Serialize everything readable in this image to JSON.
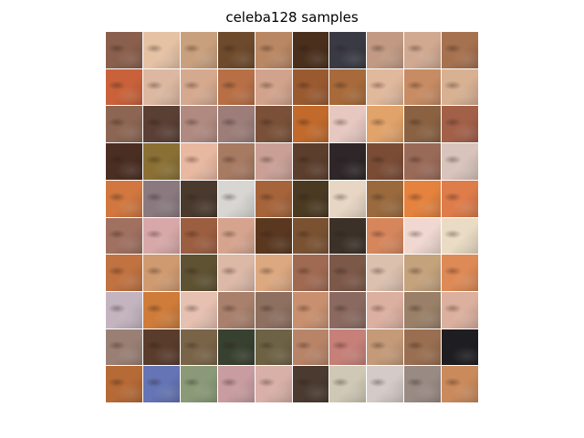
{
  "title": "celeba128 samples",
  "grid": {
    "rows": 10,
    "cols": 10,
    "tiles": [
      [
        "#8a5f4c",
        "#e6c2a4",
        "#c9a07e",
        "#6e4a2c",
        "#b98763",
        "#4a2f1c",
        "#3a3a44",
        "#c29a83",
        "#d1a991",
        "#a6714f"
      ],
      [
        "#c9623a",
        "#dcb8a0",
        "#d5a98e",
        "#b86f45",
        "#d2a38c",
        "#9a5a30",
        "#a86a3a",
        "#e0b89c",
        "#c78c63",
        "#d8b092"
      ],
      [
        "#8c6652",
        "#5a3f35",
        "#b08a80",
        "#9c7d78",
        "#7a5138",
        "#c26a2c",
        "#e6c8c0",
        "#e2a36a",
        "#8a6242",
        "#a36048"
      ],
      [
        "#4a2e22",
        "#8a7034",
        "#e8b8a0",
        "#a77a62",
        "#caa096",
        "#5c3e2c",
        "#2e2628",
        "#7a4c36",
        "#9a6a58",
        "#d8c4bc"
      ],
      [
        "#d1773f",
        "#8a7a80",
        "#4a3a2e",
        "#d8d6d2",
        "#a6643a",
        "#4a3a22",
        "#e8d6c4",
        "#9a6a3e",
        "#e4823e",
        "#de7c4a"
      ],
      [
        "#a07060",
        "#d8a8a8",
        "#9c5e40",
        "#d6a48e",
        "#5a3820",
        "#7a5232",
        "#3c3128",
        "#d7865c",
        "#f0d8d0",
        "#eadcc4"
      ],
      [
        "#c07240",
        "#d09a70",
        "#5e5232",
        "#dcb8a6",
        "#dca880",
        "#a06a52",
        "#7c5848",
        "#dcc0ae",
        "#c4a27c",
        "#de8a56"
      ],
      [
        "#c4b4c0",
        "#cf7c3a",
        "#e6c0b0",
        "#a8806c",
        "#8e7060",
        "#c8906e",
        "#8a6a60",
        "#dcb0a0",
        "#9a8068",
        "#dcb09e"
      ],
      [
        "#9a8074",
        "#5a3c2c",
        "#7a6448",
        "#384030",
        "#6e6244",
        "#b88468",
        "#c68078",
        "#c49a78",
        "#9a6e50",
        "#1e1e22"
      ],
      [
        "#b66a36",
        "#6474b4",
        "#8a9a78",
        "#c89ca0",
        "#d8b0a8",
        "#4a3a30",
        "#cfc8b4",
        "#d4cac8",
        "#9a8a84",
        "#ca8a5c"
      ]
    ]
  }
}
